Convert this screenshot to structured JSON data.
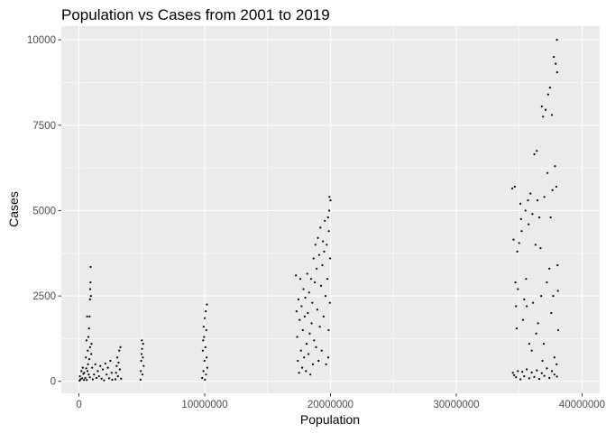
{
  "chart_data": {
    "type": "scatter",
    "title": "Population vs Cases from 2001 to 2019",
    "xlabel": "Population",
    "ylabel": "Cases",
    "xlim": [
      -1400000,
      41400000
    ],
    "ylim": [
      -350,
      10400
    ],
    "x_ticks": [
      0,
      10000000,
      20000000,
      30000000,
      40000000
    ],
    "x_tick_labels": [
      "0",
      "10000000",
      "20000000",
      "30000000",
      "40000000"
    ],
    "y_ticks": [
      0,
      2500,
      5000,
      7500,
      10000
    ],
    "y_tick_labels": [
      "0",
      "2500",
      "5000",
      "7500",
      "10000"
    ],
    "grid": true,
    "panel_background": "#ebebeb",
    "grid_color": "#ffffff",
    "point_color": "#000000",
    "legend": "none",
    "series": [
      {
        "points": [
          [
            50000,
            20
          ],
          [
            80000,
            150
          ],
          [
            120000,
            60
          ],
          [
            200000,
            300
          ],
          [
            250000,
            90
          ],
          [
            300000,
            400
          ],
          [
            350000,
            220
          ],
          [
            400000,
            40
          ],
          [
            420000,
            250
          ],
          [
            500000,
            100
          ],
          [
            550000,
            700
          ],
          [
            580000,
            380
          ],
          [
            600000,
            1200
          ],
          [
            620000,
            40
          ],
          [
            650000,
            1900
          ],
          [
            680000,
            300
          ],
          [
            700000,
            900
          ],
          [
            720000,
            500
          ],
          [
            750000,
            1300
          ],
          [
            780000,
            200
          ],
          [
            800000,
            1550
          ],
          [
            820000,
            650
          ],
          [
            850000,
            1900
          ],
          [
            870000,
            120
          ],
          [
            880000,
            2400
          ],
          [
            890000,
            1000
          ],
          [
            900000,
            2700
          ],
          [
            920000,
            2900
          ],
          [
            930000,
            3350
          ],
          [
            950000,
            2500
          ],
          [
            980000,
            800
          ],
          [
            1000000,
            1100
          ],
          [
            1050000,
            400
          ],
          [
            1100000,
            60
          ],
          [
            1200000,
            200
          ],
          [
            1300000,
            500
          ],
          [
            1400000,
            100
          ],
          [
            1500000,
            300
          ],
          [
            1600000,
            150
          ],
          [
            1700000,
            450
          ],
          [
            1800000,
            80
          ],
          [
            1900000,
            350
          ],
          [
            2000000,
            30
          ],
          [
            2100000,
            520
          ],
          [
            2200000,
            200
          ],
          [
            2300000,
            400
          ],
          [
            2400000,
            90
          ],
          [
            2500000,
            600
          ],
          [
            2600000,
            250
          ],
          [
            2650000,
            50
          ],
          [
            2900000,
            60
          ],
          [
            2950000,
            250
          ],
          [
            3000000,
            450
          ],
          [
            3050000,
            700
          ],
          [
            3100000,
            150
          ],
          [
            3150000,
            550
          ],
          [
            3200000,
            900
          ],
          [
            3250000,
            350
          ],
          [
            3300000,
            1000
          ],
          [
            3350000,
            80
          ],
          [
            4900000,
            50
          ],
          [
            4920000,
            300
          ],
          [
            4950000,
            600
          ],
          [
            4980000,
            800
          ],
          [
            5000000,
            1200
          ],
          [
            5020000,
            950
          ],
          [
            5050000,
            200
          ],
          [
            5080000,
            700
          ],
          [
            5100000,
            1100
          ],
          [
            5150000,
            450
          ],
          [
            9800000,
            100
          ],
          [
            9850000,
            900
          ],
          [
            9880000,
            1200
          ],
          [
            9900000,
            300
          ],
          [
            9920000,
            1600
          ],
          [
            9950000,
            1300
          ],
          [
            9980000,
            600
          ],
          [
            10000000,
            1850
          ],
          [
            10020000,
            50
          ],
          [
            10050000,
            1000
          ],
          [
            10080000,
            2050
          ],
          [
            10100000,
            200
          ],
          [
            10120000,
            1500
          ],
          [
            10150000,
            700
          ],
          [
            10180000,
            2250
          ],
          [
            10200000,
            400
          ],
          [
            17250000,
            3100
          ],
          [
            17300000,
            2050
          ],
          [
            17350000,
            1300
          ],
          [
            17400000,
            600
          ],
          [
            17450000,
            2400
          ],
          [
            17500000,
            250
          ],
          [
            17550000,
            1800
          ],
          [
            17600000,
            3000
          ],
          [
            17650000,
            900
          ],
          [
            17700000,
            2200
          ],
          [
            17750000,
            400
          ],
          [
            17800000,
            1500
          ],
          [
            17850000,
            2700
          ],
          [
            17900000,
            700
          ],
          [
            17950000,
            1900
          ],
          [
            18000000,
            2450
          ],
          [
            18050000,
            300
          ],
          [
            18100000,
            1100
          ],
          [
            18150000,
            3150
          ],
          [
            18200000,
            2000
          ],
          [
            18250000,
            800
          ],
          [
            18300000,
            2600
          ],
          [
            18350000,
            1400
          ],
          [
            18400000,
            200
          ],
          [
            18450000,
            3000
          ],
          [
            18500000,
            1700
          ],
          [
            18550000,
            2300
          ],
          [
            18600000,
            500
          ],
          [
            18650000,
            3600
          ],
          [
            18700000,
            1200
          ],
          [
            18750000,
            2900
          ],
          [
            18800000,
            4000
          ],
          [
            18850000,
            1000
          ],
          [
            18900000,
            3300
          ],
          [
            18950000,
            2100
          ],
          [
            19000000,
            4200
          ],
          [
            19050000,
            600
          ],
          [
            19100000,
            3700
          ],
          [
            19150000,
            1600
          ],
          [
            19200000,
            4500
          ],
          [
            19250000,
            2800
          ],
          [
            19300000,
            900
          ],
          [
            19350000,
            3400
          ],
          [
            19400000,
            4100
          ],
          [
            19450000,
            1900
          ],
          [
            19500000,
            3800
          ],
          [
            19550000,
            4700
          ],
          [
            19600000,
            2500
          ],
          [
            19650000,
            500
          ],
          [
            19700000,
            4000
          ],
          [
            19750000,
            3000
          ],
          [
            19800000,
            4800
          ],
          [
            19850000,
            1500
          ],
          [
            19900000,
            5000
          ],
          [
            19950000,
            2300
          ],
          [
            20000000,
            5300
          ],
          [
            19920000,
            5400
          ],
          [
            19870000,
            4400
          ],
          [
            19970000,
            3600
          ],
          [
            19820000,
            700
          ],
          [
            34450000,
            5650
          ],
          [
            34550000,
            4150
          ],
          [
            34650000,
            5700
          ],
          [
            34700000,
            2900
          ],
          [
            34750000,
            2200
          ],
          [
            34800000,
            1550
          ],
          [
            34850000,
            3800
          ],
          [
            34900000,
            2700
          ],
          [
            35000000,
            4050
          ],
          [
            35100000,
            5200
          ],
          [
            35150000,
            4750
          ],
          [
            35200000,
            4400
          ],
          [
            35300000,
            1800
          ],
          [
            35400000,
            2400
          ],
          [
            35500000,
            5000
          ],
          [
            35550000,
            3000
          ],
          [
            35600000,
            2200
          ],
          [
            35700000,
            5300
          ],
          [
            35750000,
            4600
          ],
          [
            35800000,
            1100
          ],
          [
            35900000,
            5500
          ],
          [
            36000000,
            900
          ],
          [
            36050000,
            4900
          ],
          [
            36100000,
            2300
          ],
          [
            36200000,
            6650
          ],
          [
            36300000,
            4000
          ],
          [
            36350000,
            1400
          ],
          [
            36400000,
            6750
          ],
          [
            36450000,
            5300
          ],
          [
            36500000,
            1700
          ],
          [
            36600000,
            4800
          ],
          [
            36700000,
            3900
          ],
          [
            36750000,
            2500
          ],
          [
            36800000,
            8050
          ],
          [
            36850000,
            600
          ],
          [
            36900000,
            7750
          ],
          [
            36950000,
            1100
          ],
          [
            37000000,
            5400
          ],
          [
            37100000,
            7950
          ],
          [
            37200000,
            2900
          ],
          [
            37250000,
            6100
          ],
          [
            37300000,
            8400
          ],
          [
            37400000,
            3300
          ],
          [
            37450000,
            8600
          ],
          [
            37500000,
            4800
          ],
          [
            37550000,
            2000
          ],
          [
            37600000,
            7800
          ],
          [
            37650000,
            5600
          ],
          [
            37700000,
            2500
          ],
          [
            37750000,
            9500
          ],
          [
            37800000,
            700
          ],
          [
            37850000,
            6300
          ],
          [
            37900000,
            9300
          ],
          [
            37950000,
            5700
          ],
          [
            38000000,
            10000
          ],
          [
            38020000,
            9050
          ],
          [
            38050000,
            3400
          ],
          [
            38080000,
            2650
          ],
          [
            38100000,
            1500
          ],
          [
            37980000,
            500
          ],
          [
            34500000,
            250
          ],
          [
            34600000,
            180
          ],
          [
            34750000,
            120
          ],
          [
            34900000,
            300
          ],
          [
            35100000,
            60
          ],
          [
            35250000,
            280
          ],
          [
            35400000,
            150
          ],
          [
            35600000,
            350
          ],
          [
            35800000,
            90
          ],
          [
            36000000,
            260
          ],
          [
            36200000,
            130
          ],
          [
            36400000,
            320
          ],
          [
            36600000,
            70
          ],
          [
            36800000,
            240
          ],
          [
            37000000,
            160
          ],
          [
            37200000,
            380
          ],
          [
            37400000,
            100
          ],
          [
            37600000,
            300
          ],
          [
            37800000,
            200
          ],
          [
            38000000,
            140
          ]
        ]
      }
    ]
  }
}
